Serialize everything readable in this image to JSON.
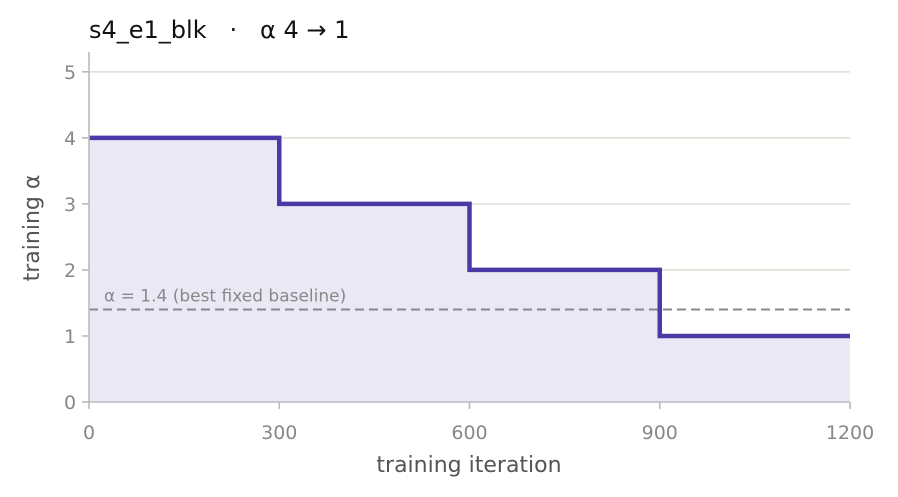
{
  "chart_data": {
    "type": "line",
    "title": "s4_e1_blk   ·   α 4 → 1",
    "xlabel": "training iteration",
    "ylabel": "training α",
    "xlim": [
      0,
      1200
    ],
    "ylim": [
      0,
      5.3
    ],
    "x_ticks": [
      0,
      300,
      600,
      900,
      1200
    ],
    "y_ticks": [
      0,
      1,
      2,
      3,
      4,
      5
    ],
    "grid": "horizontal",
    "series": [
      {
        "step": "post",
        "x": [
          0,
          300,
          600,
          900,
          1200
        ],
        "y": [
          4,
          3,
          2,
          1,
          1
        ],
        "fill": true
      }
    ],
    "reference_line": {
      "y": 1.4,
      "label": "α = 1.4 (best fixed baseline)"
    },
    "colors": {
      "line": "#4b3aa6",
      "fill": "#ebe8f6",
      "grid": "#dfe0d6",
      "reference": "#888888",
      "axis": "#bbbbbb"
    }
  }
}
